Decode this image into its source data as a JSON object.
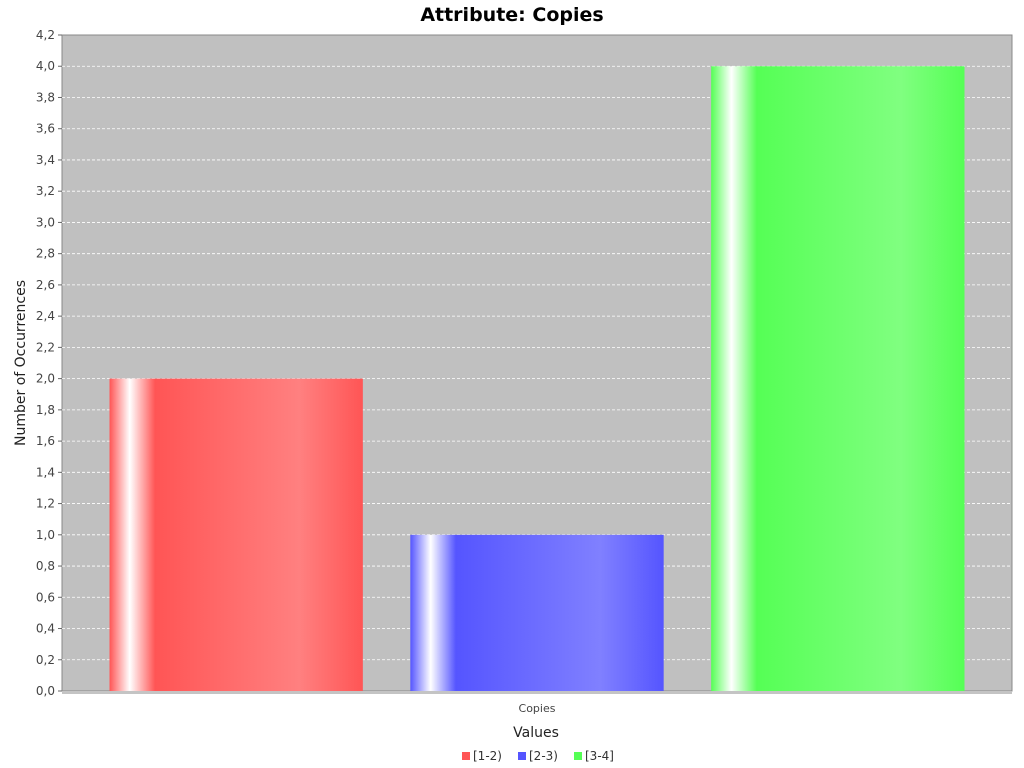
{
  "chart_data": {
    "type": "bar",
    "title": "Attribute: Copies",
    "xlabel": "Values",
    "ylabel": "Number of Occurrences",
    "categories": [
      "Copies"
    ],
    "series": [
      {
        "name": "[1-2)",
        "values": [
          2.0
        ],
        "color": "#ff5555"
      },
      {
        "name": "[2-3)",
        "values": [
          1.0
        ],
        "color": "#5555ff"
      },
      {
        "name": "[3-4]",
        "values": [
          4.0
        ],
        "color": "#55ff55"
      }
    ],
    "ylim": [
      0,
      4.2
    ],
    "yticks": [
      "0,0",
      "0,2",
      "0,4",
      "0,6",
      "0,8",
      "1,0",
      "1,2",
      "1,4",
      "1,6",
      "1,8",
      "2,0",
      "2,2",
      "2,4",
      "2,6",
      "2,8",
      "3,0",
      "3,2",
      "3,4",
      "3,6",
      "3,8",
      "4,0",
      "4,2"
    ],
    "grid": true,
    "legend_position": "bottom",
    "plot_background": "#c0c0c0"
  }
}
